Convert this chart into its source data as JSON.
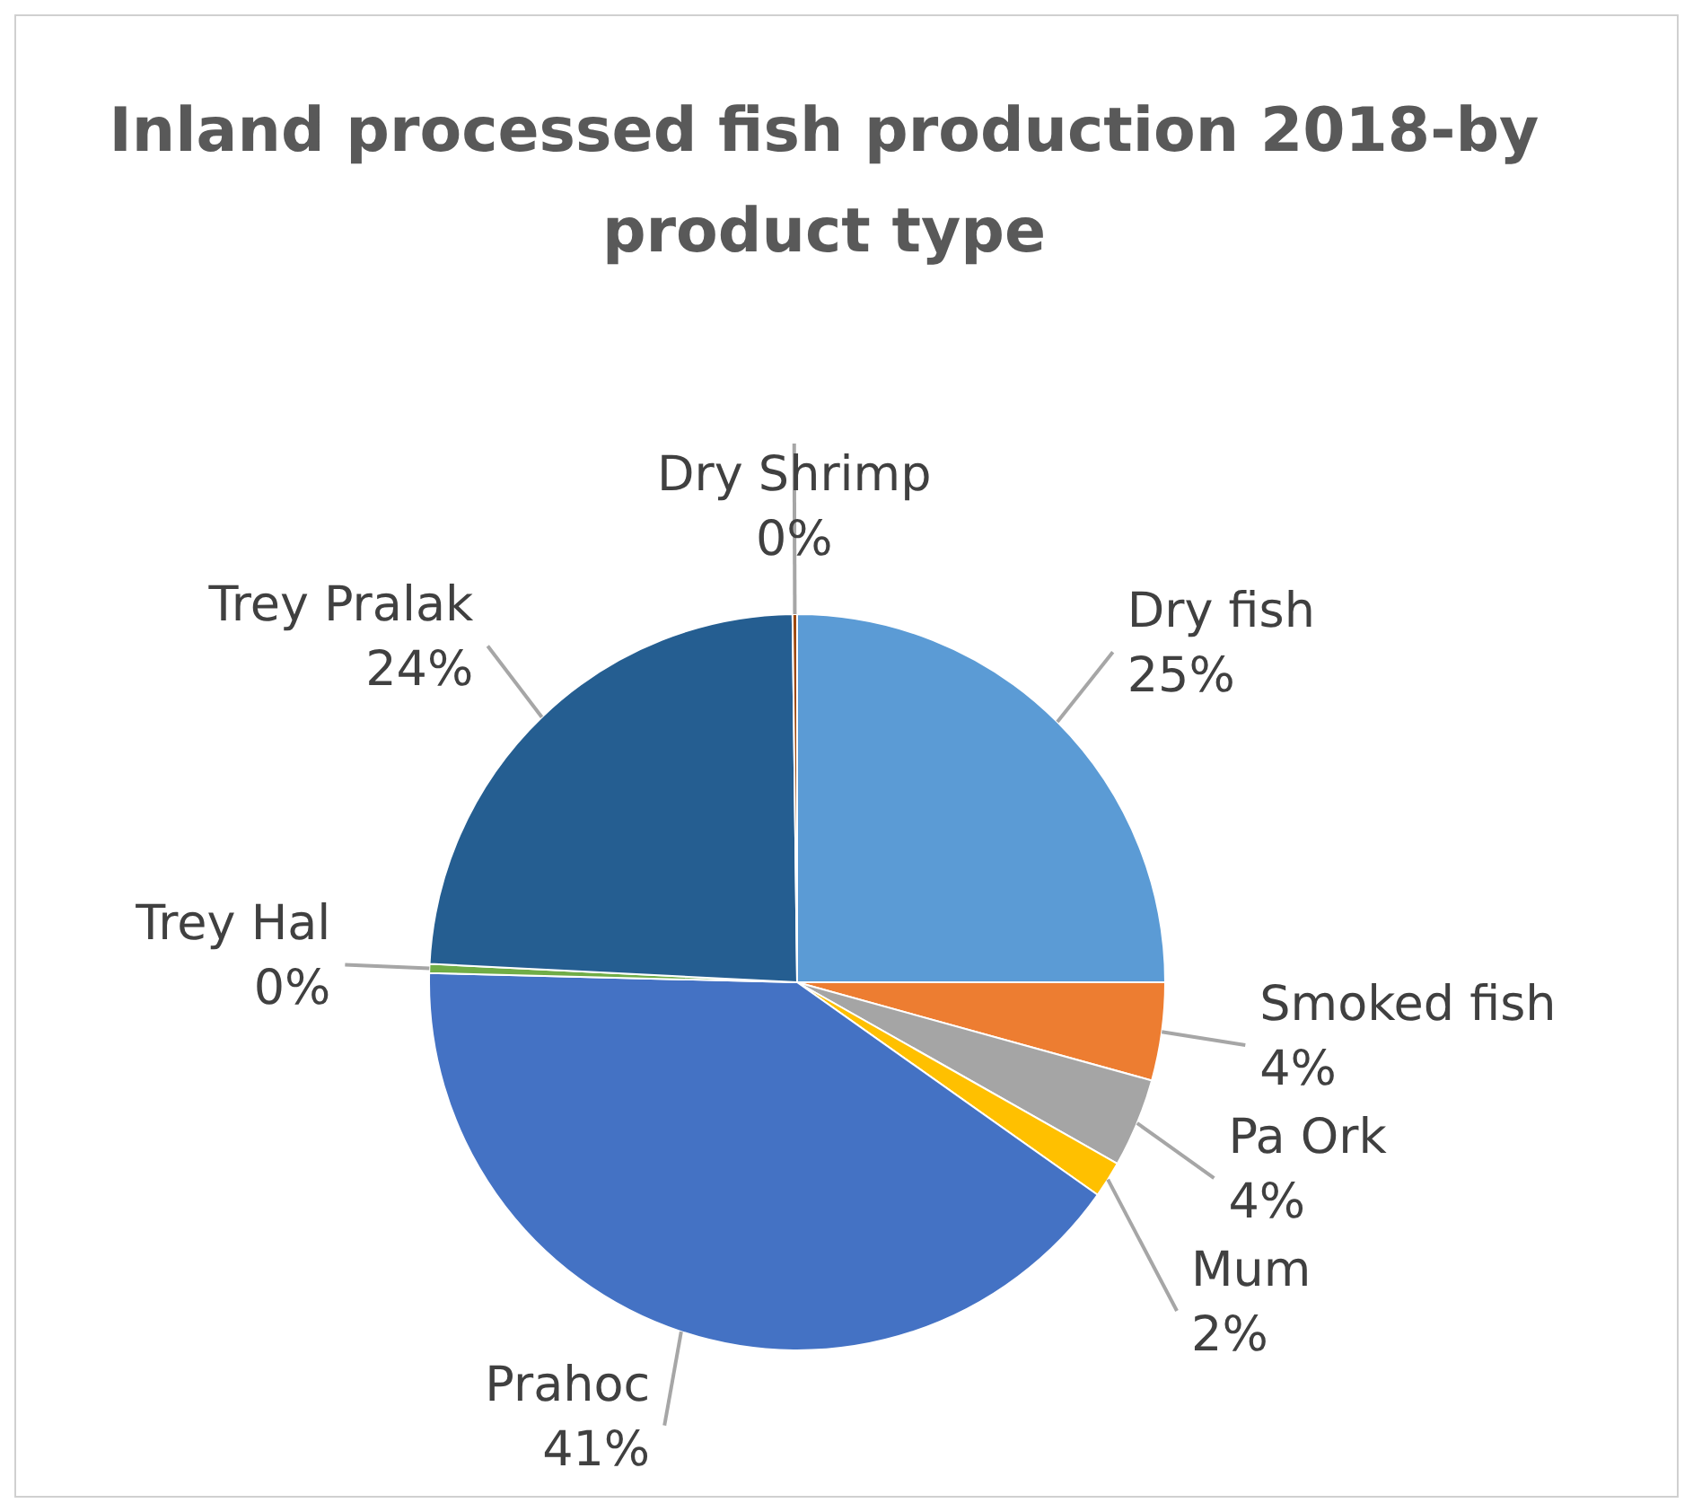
{
  "chart_data": {
    "type": "pie",
    "title": "Inland processed fish production 2018-by product type",
    "categories": [
      "Dry fish",
      "Smoked fish",
      "Pa Ork",
      "Mum",
      "Prahoc",
      "Trey Hal",
      "Trey Pralak",
      "Dry Shrimp"
    ],
    "values": [
      25,
      4.3,
      3.9,
      1.6,
      40.6,
      0.4,
      24,
      0.2
    ],
    "value_labels": [
      "25%",
      "4%",
      "4%",
      "2%",
      "41%",
      "0%",
      "24%",
      "0%"
    ],
    "colors": [
      "#5b9bd5",
      "#ed7d31",
      "#a5a5a5",
      "#ffc000",
      "#4472c4",
      "#70ad47",
      "#255e91",
      "#9e480e"
    ],
    "legend": false
  }
}
